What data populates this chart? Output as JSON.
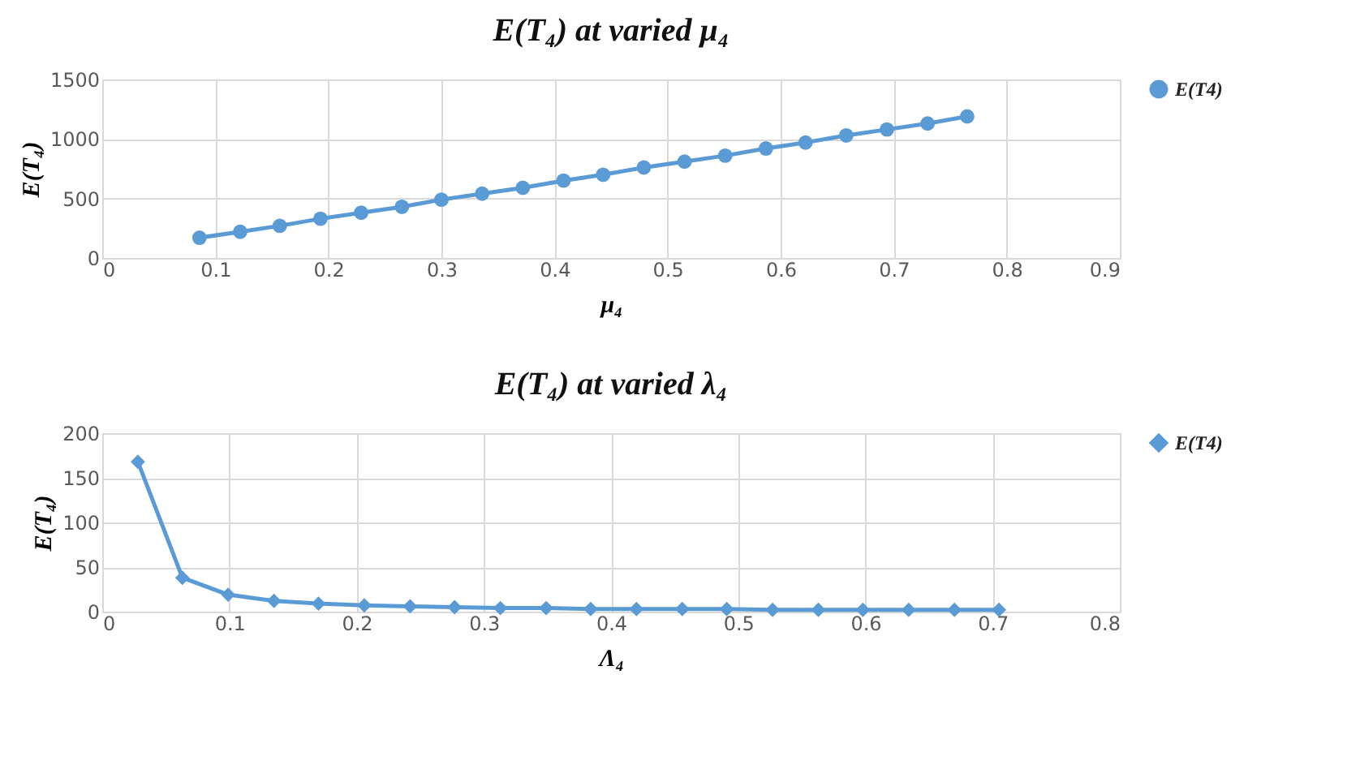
{
  "chart_data": [
    {
      "type": "line",
      "title": "E(T₄) at varied μ₄",
      "xlabel": "μ₄",
      "ylabel": "E(T₄)",
      "x": [
        0.086,
        0.122,
        0.157,
        0.193,
        0.229,
        0.265,
        0.3,
        0.336,
        0.372,
        0.408,
        0.443,
        0.479,
        0.515,
        0.551,
        0.587,
        0.622,
        0.658,
        0.694,
        0.73,
        0.765
      ],
      "series": [
        {
          "name": "E(T4)",
          "color": "#5b9bd5",
          "values": [
            170,
            220,
            270,
            330,
            380,
            430,
            490,
            540,
            590,
            650,
            700,
            760,
            810,
            860,
            920,
            970,
            1030,
            1080,
            1130,
            1190
          ]
        }
      ],
      "xlim": [
        0,
        0.9
      ],
      "xticks": [
        0,
        0.1,
        0.2,
        0.3,
        0.4,
        0.5,
        0.6,
        0.7,
        0.8,
        0.9
      ],
      "ylim": [
        0,
        1500
      ],
      "yticks": [
        0,
        500,
        1000,
        1500
      ],
      "grid": true,
      "legend": "right",
      "marker": "circle",
      "line_style": "solid"
    },
    {
      "type": "line",
      "title": "E(T₄) at varied λ₄",
      "xlabel": "Λ₄",
      "ylabel": "E(T₄)",
      "x": [
        0.028,
        0.063,
        0.099,
        0.135,
        0.17,
        0.206,
        0.242,
        0.277,
        0.313,
        0.349,
        0.384,
        0.42,
        0.456,
        0.491,
        0.527,
        0.563,
        0.598,
        0.634,
        0.67,
        0.705
      ],
      "series": [
        {
          "name": "E(T4)",
          "color": "#5b9bd5",
          "values": [
            168,
            38,
            19,
            12,
            9,
            7,
            6,
            5,
            4,
            4,
            3,
            3,
            3,
            3,
            2,
            2,
            2,
            2,
            2,
            2
          ]
        }
      ],
      "xlim": [
        0,
        0.8
      ],
      "xticks": [
        0,
        0.1,
        0.2,
        0.3,
        0.4,
        0.5,
        0.6,
        0.7,
        0.8
      ],
      "ylim": [
        0,
        200
      ],
      "yticks": [
        0,
        50,
        100,
        150,
        200
      ],
      "grid": true,
      "legend": "right",
      "marker": "diamond",
      "line_style": "solid"
    }
  ]
}
